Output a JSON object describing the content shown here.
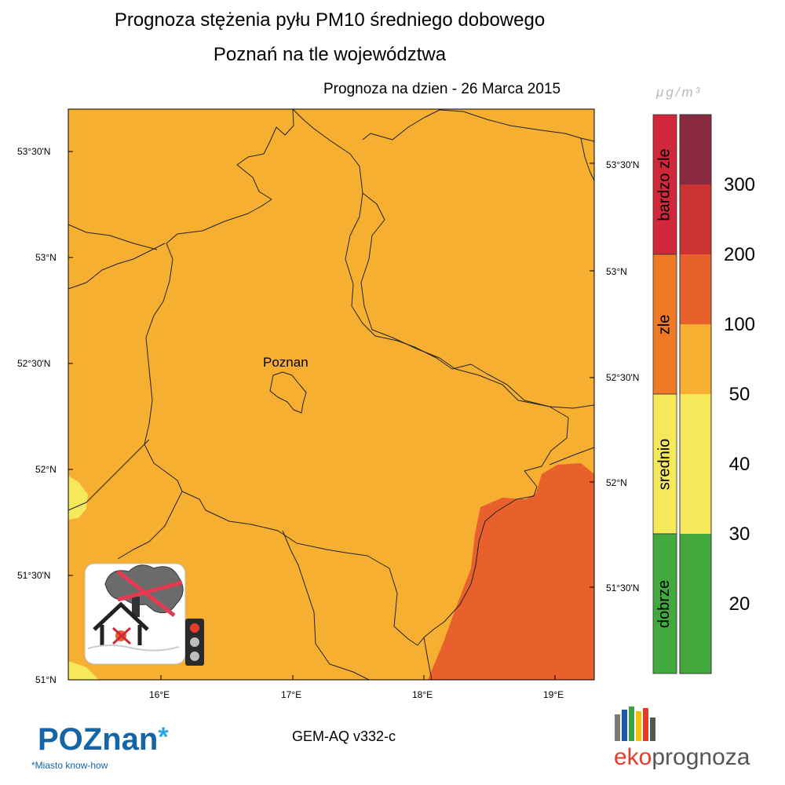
{
  "title": {
    "line1": "Prognoza stężenia pyłu PM10 średniego dobowego",
    "line2": "Poznań na tle województwa"
  },
  "forecast_date": "Prognoza na dzien -  26 Marca 2015",
  "map": {
    "city_label": "Poznan",
    "lat_labels_left": [
      "53°30'N",
      "53°N",
      "52°30'N",
      "52°N",
      "51°30'N",
      "51°N"
    ],
    "lat_labels_right": [
      "53°30'N",
      "53°N",
      "52°30'N",
      "52°N",
      "51°30'N"
    ],
    "lon_labels": [
      "16°E",
      "17°E",
      "18°E",
      "19°E"
    ],
    "colors": {
      "dominant": "#F6AF30",
      "low": "#F5E85A",
      "high": "#E8612C"
    }
  },
  "legend": {
    "unit": "μg/m³",
    "categories": [
      {
        "label": "bardzo zle",
        "color": "#D0283A"
      },
      {
        "label": "zle",
        "color": "#EE7A25"
      },
      {
        "label": "srednio",
        "color": "#F5E85A"
      },
      {
        "label": "dobrze",
        "color": "#43A93E"
      }
    ],
    "scale_colors": [
      "#8A2A40",
      "#CC3333",
      "#E8612C",
      "#F6AF30",
      "#F5E85A",
      "#F5E85A",
      "#43A93E",
      "#43A93E"
    ],
    "tick_labels": [
      "300",
      "200",
      "100",
      "50",
      "40",
      "30",
      "20"
    ]
  },
  "model_label": "GEM-AQ v332-c",
  "poznan_logo": {
    "text": "POZnan",
    "tagline": "*Miasto know-how"
  },
  "ekoprognoza_logo": {
    "part1": "eko",
    "part2": "prognoza",
    "bar_colors": [
      "#7a7a7a",
      "#1e5aa8",
      "#3aa341",
      "#f2c20b",
      "#e53b2a",
      "#555555"
    ]
  },
  "warning_icon": {
    "name": "no-burning-warning",
    "traffic_light": [
      "red",
      "grey",
      "grey"
    ]
  }
}
